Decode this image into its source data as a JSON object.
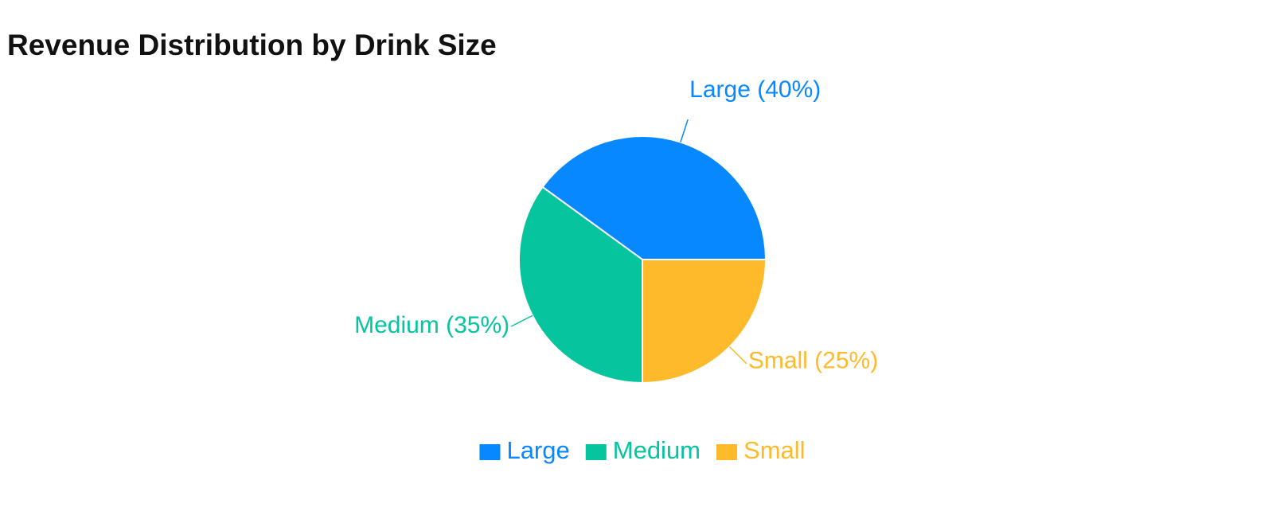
{
  "page": {
    "title": "Revenue Distribution by Drink Size"
  },
  "chart_data": {
    "type": "pie",
    "title": "Revenue Distribution by Drink Size",
    "categories": [
      "Large",
      "Medium",
      "Small"
    ],
    "values": [
      40,
      35,
      25
    ],
    "colors": [
      "#0788FF",
      "#05C49E",
      "#FFBA2B"
    ],
    "slice_labels": [
      "Large (40%)",
      "Medium (35%)",
      "Small (25%)"
    ],
    "legend": {
      "position": "bottom",
      "items": [
        "Large",
        "Medium",
        "Small"
      ]
    }
  }
}
